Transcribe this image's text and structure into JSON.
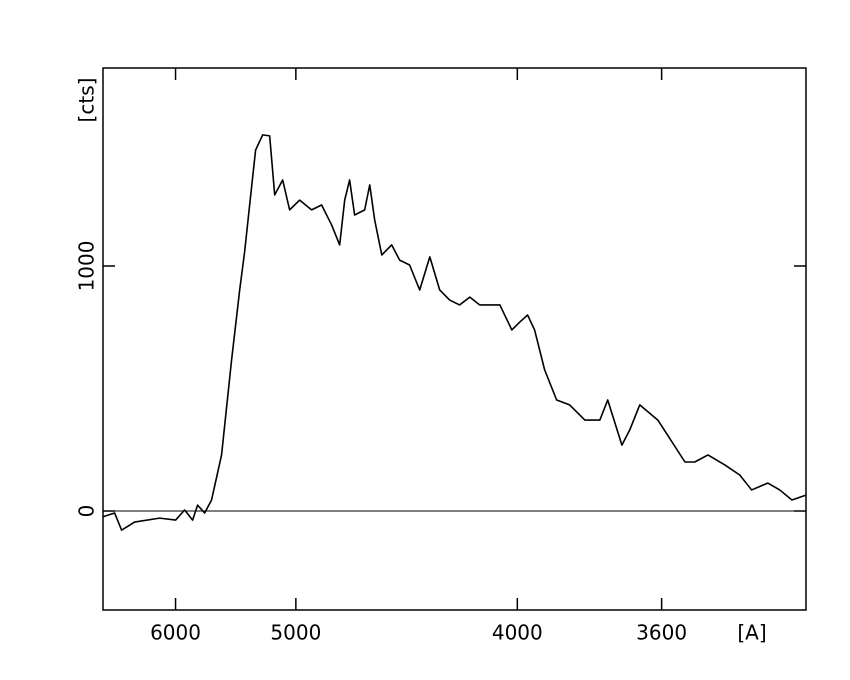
{
  "chart_data": {
    "type": "line",
    "xscale": "inverse_square",
    "xlabel": "[A]",
    "ylabel": "[cts]",
    "x": [
      7007,
      6806,
      6697,
      6507,
      6183,
      5999,
      5903,
      5821,
      5772,
      5704,
      5640,
      5551,
      5466,
      5400,
      5361,
      5322,
      5277,
      5225,
      5175,
      5140,
      5086,
      5040,
      4976,
      4903,
      4844,
      4787,
      4743,
      4716,
      4690,
      4664,
      4613,
      4588,
      4564,
      4530,
      4484,
      4448,
      4404,
      4361,
      4319,
      4279,
      4240,
      4202,
      4164,
      4128,
      4058,
      4018,
      3992,
      3967,
      3945,
      3914,
      3878,
      3840,
      3797,
      3756,
      3735,
      3698,
      3678,
      3653,
      3609,
      3586,
      3546,
      3524,
      3495,
      3459,
      3428,
      3404,
      3372,
      3349,
      3326,
      3300
    ],
    "series": [
      {
        "color": "#000000",
        "values": [
          -24,
          -8,
          -78,
          -45,
          -29,
          -37,
          4,
          -37,
          24,
          -8,
          45,
          229,
          616,
          902,
          1057,
          1249,
          1473,
          1535,
          1531,
          1290,
          1351,
          1229,
          1269,
          1229,
          1249,
          1167,
          1086,
          1269,
          1351,
          1208,
          1229,
          1331,
          1188,
          1045,
          1086,
          1024,
          1004,
          902,
          1037,
          902,
          861,
          841,
          873,
          841,
          841,
          739,
          771,
          800,
          739,
          576,
          453,
          433,
          371,
          371,
          453,
          269,
          331,
          433,
          371,
          310,
          200,
          200,
          229,
          188,
          147,
          86,
          114,
          86,
          45,
          65
        ]
      }
    ],
    "xlim": [
      7000,
      3300
    ],
    "xticks": [
      6000,
      5000,
      4000,
      3600
    ],
    "ylim": [
      -404,
      1808
    ],
    "yticks": [
      0,
      1000
    ],
    "zero_line": true
  }
}
